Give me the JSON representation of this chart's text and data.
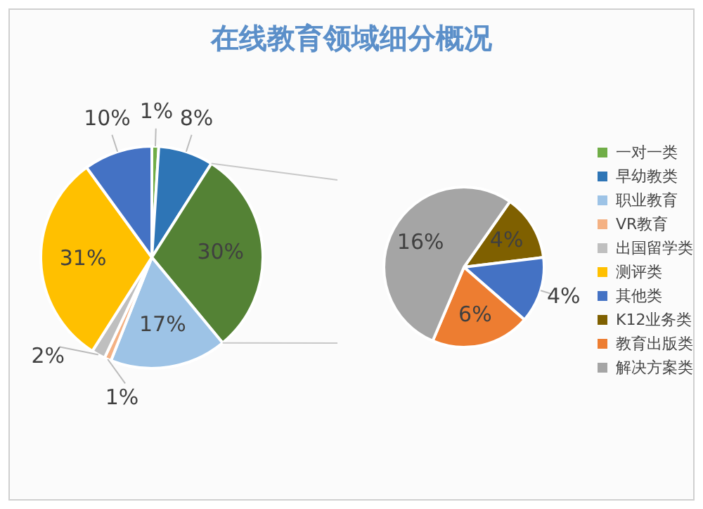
{
  "chart_data": [
    {
      "type": "pie",
      "title": "在线教育领域细分概况",
      "categories": [
        "一对一类",
        "早幼教类",
        null,
        "职业教育",
        "VR教育",
        "出国留学类",
        "测评类",
        "其他类"
      ],
      "values": [
        1,
        8,
        30,
        17,
        1,
        2,
        31,
        10
      ],
      "colors": [
        "#70ad47",
        "#2e75b6",
        "#548235",
        "#9dc3e6",
        "#f4b183",
        "#bfbfbf",
        "#ffc000",
        "#4472c4"
      ],
      "value_labels": [
        "1%",
        "8%",
        "30%",
        "17%",
        "1%",
        "2%",
        "31%",
        "10%"
      ],
      "legend": "right"
    },
    {
      "type": "pie",
      "categories": [
        "K12业务类",
        null,
        "教育出版类",
        "解决方案类"
      ],
      "values": [
        4,
        4,
        6,
        16
      ],
      "colors": [
        "#7f6000",
        "#4472c4",
        "#ed7d31",
        "#a5a5a5"
      ],
      "value_labels": [
        "4%",
        "4%",
        "6%",
        "16%"
      ],
      "legend": "right"
    }
  ]
}
